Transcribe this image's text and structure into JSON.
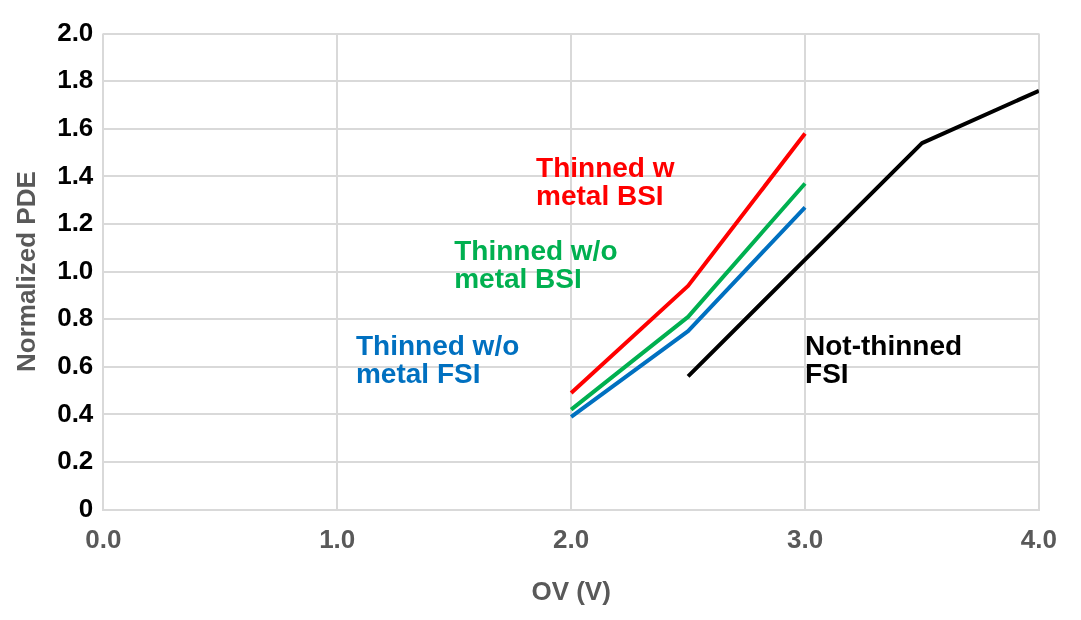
{
  "chart_data": {
    "type": "line",
    "xlabel": "OV (V)",
    "ylabel": "Normalized PDE",
    "xlim": [
      0,
      4
    ],
    "xticks": [
      {
        "value": 0,
        "label": "0.0"
      },
      {
        "value": 1,
        "label": "1.0"
      },
      {
        "value": 2,
        "label": "2.0"
      },
      {
        "value": 3,
        "label": "3.0"
      },
      {
        "value": 4,
        "label": "4.0"
      }
    ],
    "ylim": [
      0,
      2
    ],
    "yticks": [
      0,
      0.2,
      0.4,
      0.6,
      0.8,
      {
        "value": 1,
        "label": "1.0"
      },
      1.2,
      1.4,
      1.6,
      1.8,
      {
        "value": 2,
        "label": "2.0"
      }
    ],
    "grid": true,
    "legend": false,
    "marker": "none",
    "line_style": "solid",
    "series": [
      {
        "name": "Thinned w\nmetal BSI",
        "color": "#ff0000",
        "x": [
          2,
          2.5,
          3
        ],
        "values": [
          0.49,
          0.94,
          1.58
        ]
      },
      {
        "name": "Thinned w/o\nmetal BSI",
        "color": "#00b050",
        "x": [
          2,
          2.5,
          3
        ],
        "values": [
          0.42,
          0.81,
          1.37
        ]
      },
      {
        "name": "Thinned w/o\nmetal FSI",
        "color": "#0070c0",
        "x": [
          2,
          2.5,
          3
        ],
        "values": [
          0.39,
          0.75,
          1.27
        ]
      },
      {
        "name": "Not-thinned\nFSI",
        "color": "#000000",
        "x": [
          2.5,
          3,
          3.5,
          4
        ],
        "values": [
          0.56,
          1.05,
          1.54,
          1.76
        ]
      }
    ]
  }
}
